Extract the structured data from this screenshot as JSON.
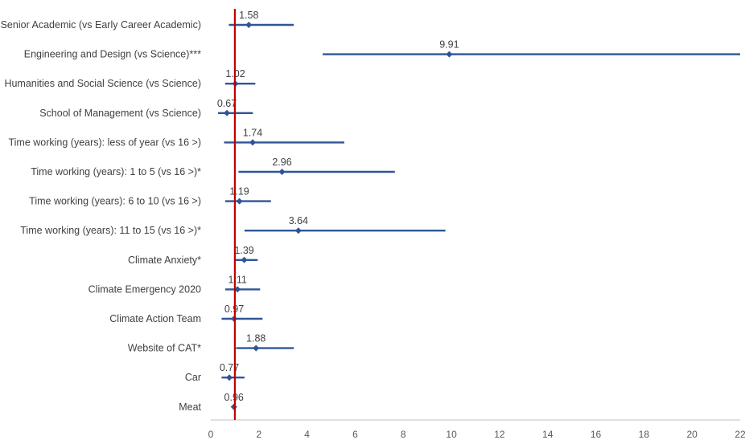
{
  "chart_data": {
    "type": "forest",
    "title": "",
    "xlabel": "",
    "ylabel": "",
    "xlim": [
      0,
      22
    ],
    "xticks": [
      0,
      2,
      4,
      6,
      8,
      10,
      12,
      14,
      16,
      18,
      20,
      22
    ],
    "reference_line": 1,
    "grid": false,
    "colors": {
      "series": "#2F5597",
      "reference": "#C00000",
      "axis": "#BFBFBF"
    },
    "rows": [
      {
        "label": "Senior Academic (vs Early Career Academic)",
        "value": 1.58,
        "value_label": "1.58",
        "lower": 0.75,
        "upper": 3.45
      },
      {
        "label": "Engineering and Design (vs Science)***",
        "value": 9.91,
        "value_label": "9.91",
        "lower": 4.65,
        "upper": 22
      },
      {
        "label": "Humanities and Social Science (vs Science)",
        "value": 1.02,
        "value_label": "1.02",
        "lower": 0.6,
        "upper": 1.85
      },
      {
        "label": "School of Management (vs Science)",
        "value": 0.67,
        "value_label": "0.67",
        "lower": 0.3,
        "upper": 1.75
      },
      {
        "label": "Time working (years): less of year (vs 16 >)",
        "value": 1.74,
        "value_label": "1.74",
        "lower": 0.55,
        "upper": 5.55
      },
      {
        "label": "Time working (years): 1 to 5 (vs 16 >)*",
        "value": 2.96,
        "value_label": "2.96",
        "lower": 1.15,
        "upper": 7.65
      },
      {
        "label": "Time working (years): 6 to 10 (vs 16 >)",
        "value": 1.19,
        "value_label": "1.19",
        "lower": 0.6,
        "upper": 2.5
      },
      {
        "label": "Time working (years): 11 to 15 (vs 16 >)*",
        "value": 3.64,
        "value_label": "3.64",
        "lower": 1.4,
        "upper": 9.75
      },
      {
        "label": "Climate Anxiety*",
        "value": 1.39,
        "value_label": "1.39",
        "lower": 1.0,
        "upper": 1.95
      },
      {
        "label": "Climate Emergency 2020",
        "value": 1.11,
        "value_label": "1.11",
        "lower": 0.6,
        "upper": 2.05
      },
      {
        "label": "Climate Action Team",
        "value": 0.97,
        "value_label": "0.97",
        "lower": 0.45,
        "upper": 2.15
      },
      {
        "label": "Website of CAT*",
        "value": 1.88,
        "value_label": "1.88",
        "lower": 1.05,
        "upper": 3.45
      },
      {
        "label": "Car",
        "value": 0.77,
        "value_label": "0.77",
        "lower": 0.45,
        "upper": 1.4
      },
      {
        "label": "Meat",
        "value": 0.96,
        "value_label": "0.96",
        "lower": 0.96,
        "upper": 0.96
      }
    ]
  }
}
